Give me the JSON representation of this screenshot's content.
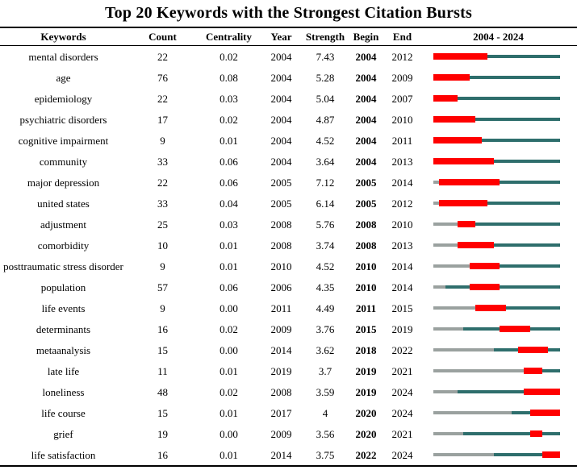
{
  "chart_data": {
    "type": "table",
    "title": "Top 20 Keywords with the Strongest Citation Bursts",
    "columns": [
      "Keywords",
      "Count",
      "Centrality",
      "Year",
      "Strength",
      "Begin",
      "End",
      "2004 - 2024"
    ],
    "timeline_range": [
      2004,
      2024
    ],
    "colors": {
      "burst_red": "#ff0000",
      "active_teal": "#2e6e6c",
      "inactive_gray": "#9aa19f",
      "rule_black": "#000000"
    },
    "rows": [
      {
        "keyword": "mental disorders",
        "count": "22",
        "centrality": "0.02",
        "year": "2004",
        "strength": "7.43",
        "begin": "2004",
        "end": "2012"
      },
      {
        "keyword": "age",
        "count": "76",
        "centrality": "0.08",
        "year": "2004",
        "strength": "5.28",
        "begin": "2004",
        "end": "2009"
      },
      {
        "keyword": "epidemiology",
        "count": "22",
        "centrality": "0.03",
        "year": "2004",
        "strength": "5.04",
        "begin": "2004",
        "end": "2007"
      },
      {
        "keyword": "psychiatric disorders",
        "count": "17",
        "centrality": "0.02",
        "year": "2004",
        "strength": "4.87",
        "begin": "2004",
        "end": "2010"
      },
      {
        "keyword": "cognitive impairment",
        "count": "9",
        "centrality": "0.01",
        "year": "2004",
        "strength": "4.52",
        "begin": "2004",
        "end": "2011"
      },
      {
        "keyword": "community",
        "count": "33",
        "centrality": "0.06",
        "year": "2004",
        "strength": "3.64",
        "begin": "2004",
        "end": "2013"
      },
      {
        "keyword": "major depression",
        "count": "22",
        "centrality": "0.06",
        "year": "2005",
        "strength": "7.12",
        "begin": "2005",
        "end": "2014"
      },
      {
        "keyword": "united states",
        "count": "33",
        "centrality": "0.04",
        "year": "2005",
        "strength": "6.14",
        "begin": "2005",
        "end": "2012"
      },
      {
        "keyword": "adjustment",
        "count": "25",
        "centrality": "0.03",
        "year": "2008",
        "strength": "5.76",
        "begin": "2008",
        "end": "2010"
      },
      {
        "keyword": "comorbidity",
        "count": "10",
        "centrality": "0.01",
        "year": "2008",
        "strength": "3.74",
        "begin": "2008",
        "end": "2013"
      },
      {
        "keyword": "posttraumatic stress disorder",
        "count": "9",
        "centrality": "0.01",
        "year": "2010",
        "strength": "4.52",
        "begin": "2010",
        "end": "2014"
      },
      {
        "keyword": "population",
        "count": "57",
        "centrality": "0.06",
        "year": "2006",
        "strength": "4.35",
        "begin": "2010",
        "end": "2014"
      },
      {
        "keyword": "life events",
        "count": "9",
        "centrality": "0.00",
        "year": "2011",
        "strength": "4.49",
        "begin": "2011",
        "end": "2015"
      },
      {
        "keyword": "determinants",
        "count": "16",
        "centrality": "0.02",
        "year": "2009",
        "strength": "3.76",
        "begin": "2015",
        "end": "2019"
      },
      {
        "keyword": "metaanalysis",
        "count": "15",
        "centrality": "0.00",
        "year": "2014",
        "strength": "3.62",
        "begin": "2018",
        "end": "2022"
      },
      {
        "keyword": "late life",
        "count": "11",
        "centrality": "0.01",
        "year": "2019",
        "strength": "3.7",
        "begin": "2019",
        "end": "2021"
      },
      {
        "keyword": "loneliness",
        "count": "48",
        "centrality": "0.02",
        "year": "2008",
        "strength": "3.59",
        "begin": "2019",
        "end": "2024"
      },
      {
        "keyword": "life course",
        "count": "15",
        "centrality": "0.01",
        "year": "2017",
        "strength": "4",
        "begin": "2020",
        "end": "2024"
      },
      {
        "keyword": "grief",
        "count": "19",
        "centrality": "0.00",
        "year": "2009",
        "strength": "3.56",
        "begin": "2020",
        "end": "2021"
      },
      {
        "keyword": "life satisfaction",
        "count": "16",
        "centrality": "0.01",
        "year": "2014",
        "strength": "3.75",
        "begin": "2022",
        "end": "2024"
      }
    ]
  }
}
